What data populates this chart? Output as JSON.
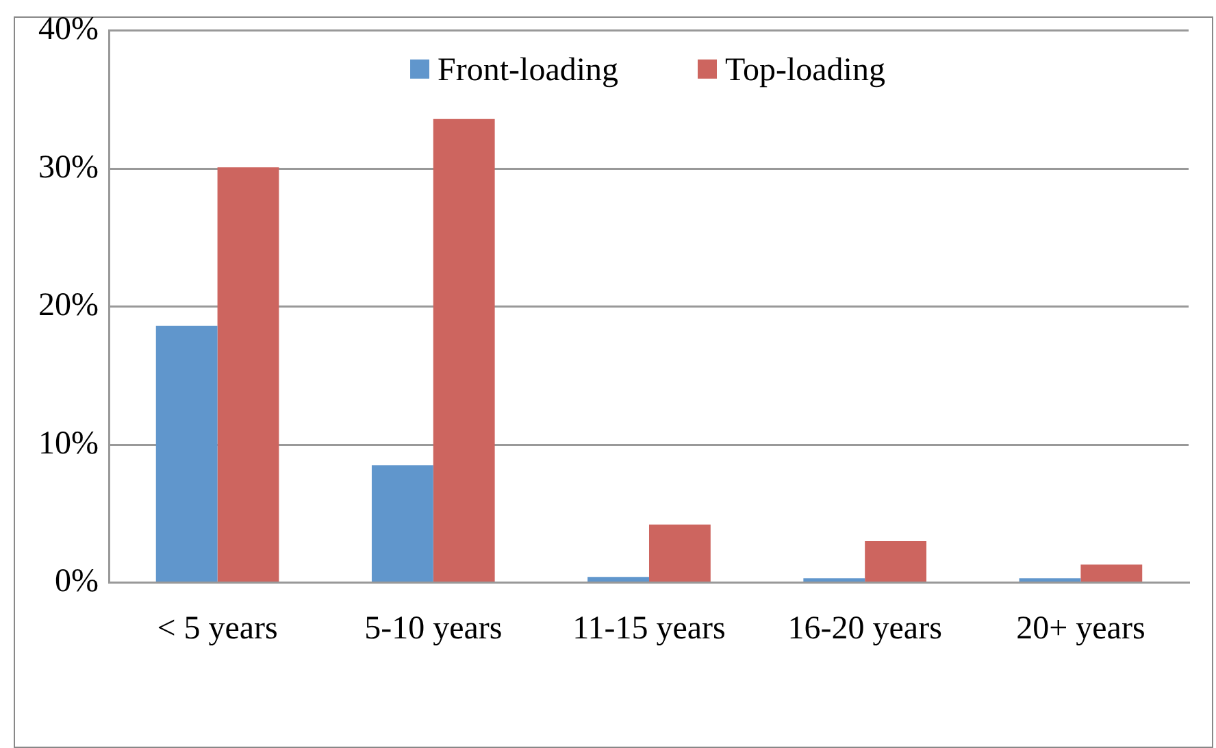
{
  "chart_data": {
    "type": "bar",
    "categories": [
      "< 5 years",
      "5-10 years",
      "11-15 years",
      "16-20 years",
      "20+ years"
    ],
    "series": [
      {
        "name": "Front-loading",
        "color": "#6096cc",
        "values": [
          18.6,
          8.5,
          0.4,
          0.3,
          0.3
        ]
      },
      {
        "name": "Top-loading",
        "color": "#cd655f",
        "values": [
          30.1,
          33.6,
          4.2,
          3.0,
          1.3
        ]
      }
    ],
    "ylim": [
      0,
      40
    ],
    "yticks": [
      {
        "value": 0,
        "label": "0%"
      },
      {
        "value": 10,
        "label": "10%"
      },
      {
        "value": 20,
        "label": "20%"
      },
      {
        "value": 30,
        "label": "30%"
      },
      {
        "value": 40,
        "label": "40%"
      }
    ],
    "grid": "y",
    "legend": "top"
  }
}
